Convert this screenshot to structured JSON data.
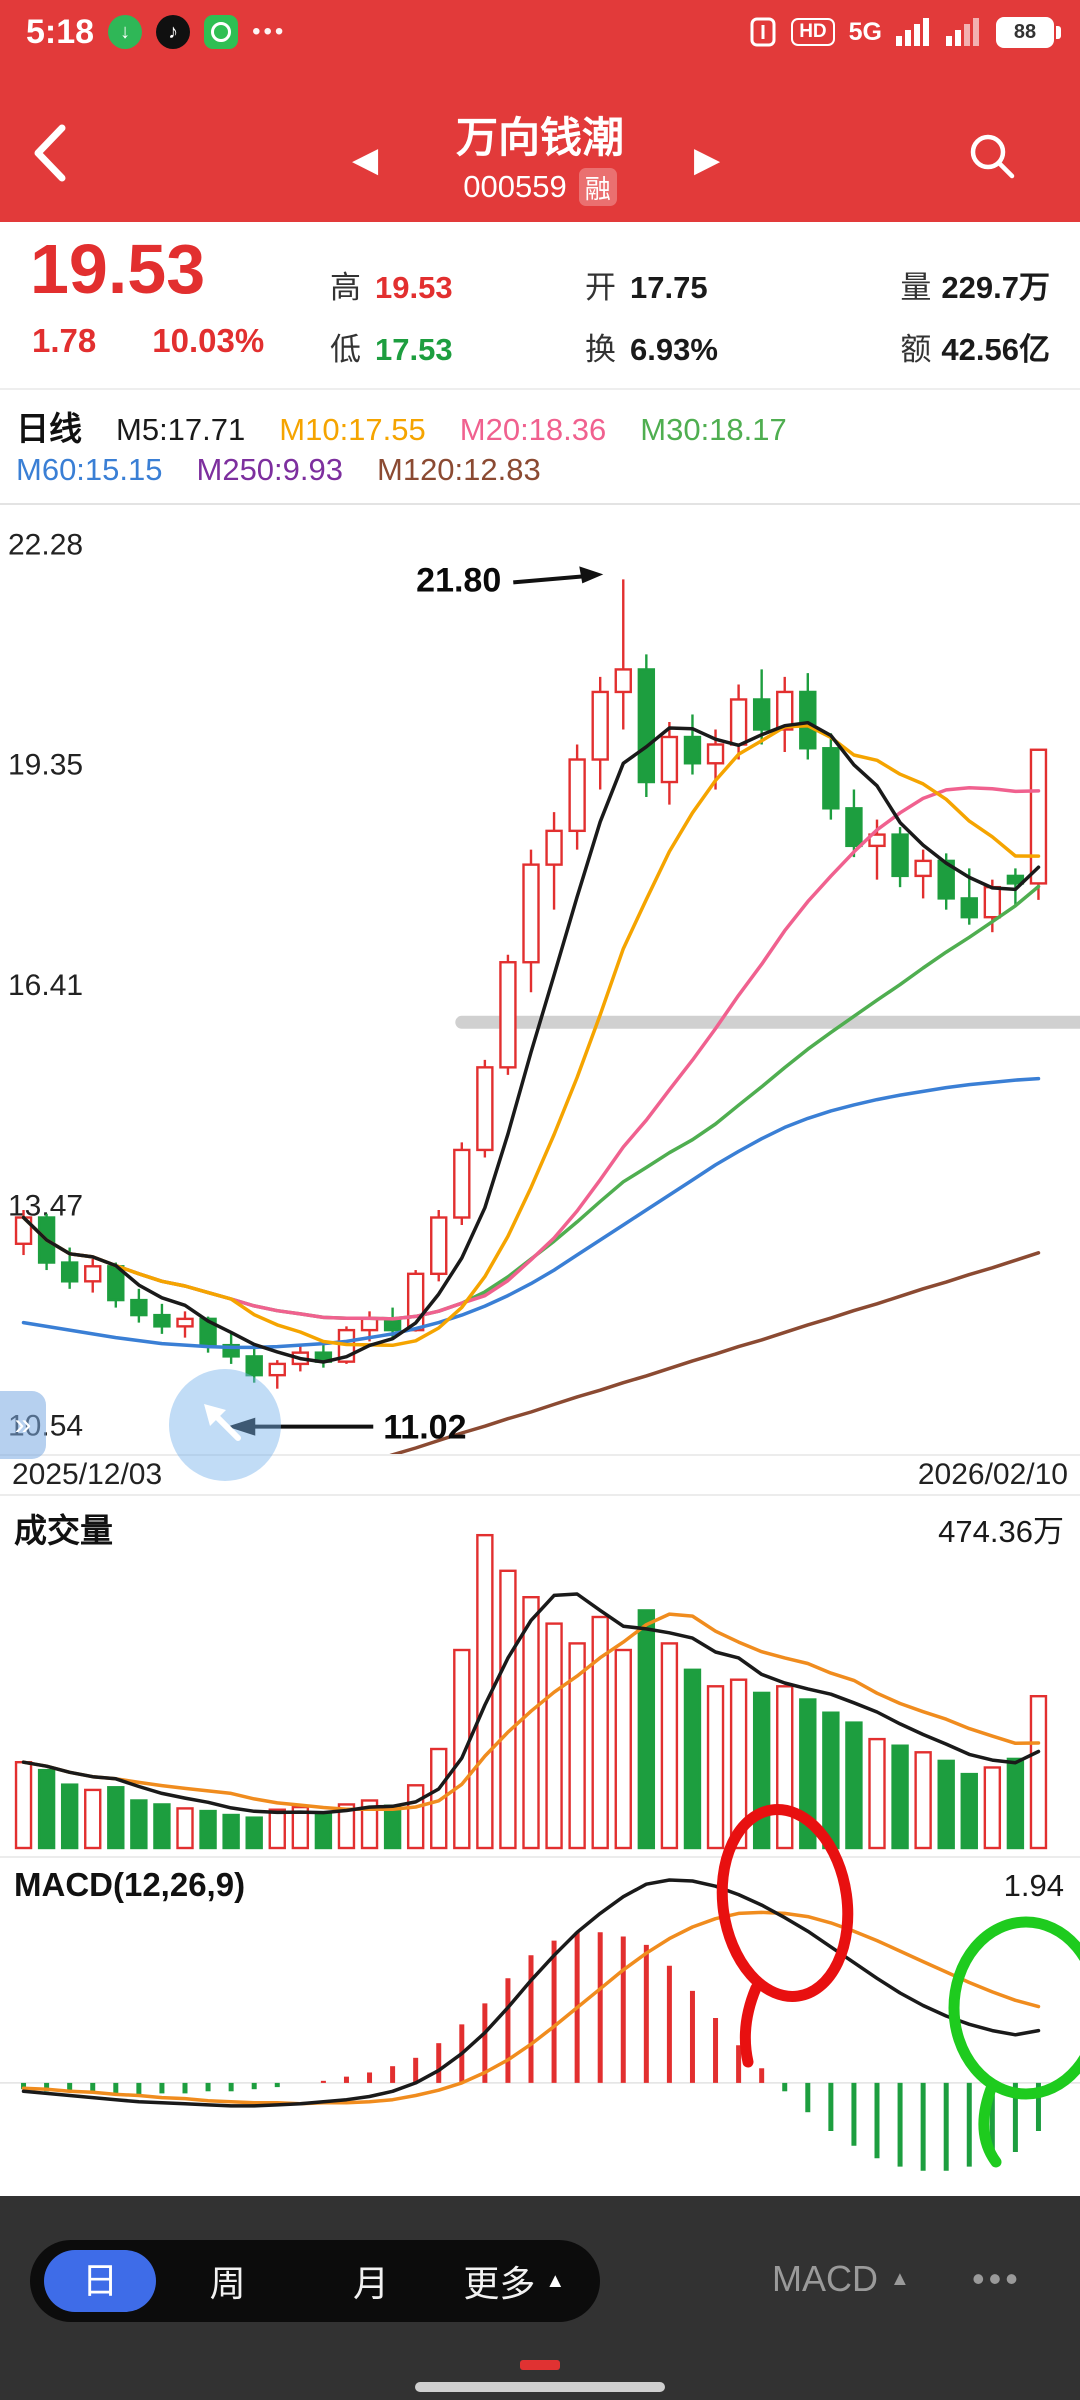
{
  "colors": {
    "header_red": "#e23a3a",
    "up_red": "#e22f2f",
    "down_green": "#1d9e3f",
    "flat_dark": "#1a1a1a",
    "ma5": "#1a1a1a",
    "ma10": "#f5a400",
    "ma20": "#f0618f",
    "ma30": "#4fae50",
    "ma60": "#3a7fd5",
    "ma120": "#8b4a32",
    "macd_dif": "#1a1a1a",
    "macd_dea": "#f08c1e",
    "annotation_red": "#e81010",
    "annotation_green": "#1ecb1e"
  },
  "status_bar": {
    "time": "5:18",
    "hd": "HD",
    "network": "5G",
    "battery": "88"
  },
  "header": {
    "title": "万向钱潮",
    "code": "000559",
    "margin_badge": "融"
  },
  "quote": {
    "price": "19.53",
    "change": "1.78",
    "change_pct": "10.03%",
    "high_label": "高",
    "high": "19.53",
    "low_label": "低",
    "low": "17.53",
    "open_label": "开",
    "open": "17.75",
    "turnover_label": "换",
    "turnover": "6.93%",
    "volume_label": "量",
    "volume": "229.7万",
    "amount_label": "额",
    "amount": "42.56亿"
  },
  "ma_bar": {
    "period": "日线",
    "row1": [
      {
        "label": "M5:17.71",
        "color": "#1a1a1a"
      },
      {
        "label": "M10:17.55",
        "color": "#f5a400"
      },
      {
        "label": "M20:18.36",
        "color": "#f0618f"
      },
      {
        "label": "M30:18.17",
        "color": "#4fae50"
      }
    ],
    "row2": [
      {
        "label": "M60:15.15",
        "color": "#3a7fd5"
      },
      {
        "label": "M250:9.93",
        "color": "#7d2f9e"
      },
      {
        "label": "M120:12.83",
        "color": "#8b4a32"
      }
    ]
  },
  "dates": {
    "start": "2025/12/03",
    "end": "2026/02/10"
  },
  "volume_pane": {
    "label": "成交量",
    "max_label": "474.36万"
  },
  "macd_pane": {
    "label": "MACD(12,26,9)",
    "value_label": "1.94"
  },
  "bottom_bar": {
    "tab_day": "日",
    "tab_week": "周",
    "tab_month": "月",
    "tab_more": "更多",
    "indicator": "MACD"
  },
  "chart_data": {
    "type": "candlestick+volume+macd",
    "kline": {
      "y_ticks": [
        "22.28",
        "19.35",
        "16.41",
        "13.47",
        "10.54"
      ],
      "ylim": [
        10.15,
        22.79
      ],
      "high_point": {
        "day": 26,
        "price": 21.8,
        "label": "21.80"
      },
      "low_point": {
        "day": 11,
        "price": 11.02,
        "label": "11.02"
      },
      "level_line": {
        "price": 15.9,
        "start_day": 19
      },
      "candles": [
        [
          12.95,
          13.4,
          12.8,
          13.3
        ],
        [
          13.3,
          13.35,
          12.6,
          12.7
        ],
        [
          12.7,
          12.9,
          12.35,
          12.45
        ],
        [
          12.45,
          12.75,
          12.3,
          12.65
        ],
        [
          12.65,
          12.7,
          12.1,
          12.2
        ],
        [
          12.2,
          12.35,
          11.9,
          12.0
        ],
        [
          12.0,
          12.15,
          11.75,
          11.85
        ],
        [
          11.85,
          12.05,
          11.7,
          11.95
        ],
        [
          11.95,
          11.98,
          11.5,
          11.6
        ],
        [
          11.6,
          11.75,
          11.35,
          11.45
        ],
        [
          11.45,
          11.55,
          11.1,
          11.2
        ],
        [
          11.2,
          11.4,
          11.02,
          11.35
        ],
        [
          11.35,
          11.6,
          11.25,
          11.5
        ],
        [
          11.5,
          11.65,
          11.3,
          11.38
        ],
        [
          11.38,
          11.85,
          11.35,
          11.8
        ],
        [
          11.8,
          12.05,
          11.65,
          11.95
        ],
        [
          11.95,
          12.1,
          11.7,
          11.8
        ],
        [
          11.8,
          12.6,
          11.78,
          12.55
        ],
        [
          12.55,
          13.4,
          12.45,
          13.3
        ],
        [
          13.3,
          14.3,
          13.2,
          14.2
        ],
        [
          14.2,
          15.4,
          14.1,
          15.3
        ],
        [
          15.3,
          16.8,
          15.2,
          16.7
        ],
        [
          16.7,
          18.2,
          16.3,
          18.0
        ],
        [
          18.0,
          18.7,
          17.4,
          18.45
        ],
        [
          18.45,
          19.6,
          18.2,
          19.4
        ],
        [
          19.4,
          20.5,
          19.0,
          20.3
        ],
        [
          20.3,
          21.8,
          19.8,
          20.6
        ],
        [
          20.6,
          20.8,
          18.9,
          19.1
        ],
        [
          19.1,
          19.9,
          18.8,
          19.7
        ],
        [
          19.7,
          20.0,
          19.2,
          19.35
        ],
        [
          19.35,
          19.8,
          19.0,
          19.6
        ],
        [
          19.6,
          20.4,
          19.4,
          20.2
        ],
        [
          20.2,
          20.6,
          19.6,
          19.8
        ],
        [
          19.8,
          20.5,
          19.5,
          20.3
        ],
        [
          20.3,
          20.55,
          19.4,
          19.55
        ],
        [
          19.55,
          19.75,
          18.6,
          18.75
        ],
        [
          18.75,
          19.0,
          18.1,
          18.25
        ],
        [
          18.25,
          18.6,
          17.8,
          18.4
        ],
        [
          18.4,
          18.5,
          17.7,
          17.85
        ],
        [
          17.85,
          18.2,
          17.55,
          18.05
        ],
        [
          18.05,
          18.15,
          17.4,
          17.55
        ],
        [
          17.55,
          17.95,
          17.2,
          17.3
        ],
        [
          17.3,
          17.8,
          17.1,
          17.7
        ],
        [
          17.85,
          17.95,
          17.45,
          17.75
        ],
        [
          17.75,
          19.53,
          17.53,
          19.53
        ]
      ],
      "ma60": [
        11.9,
        11.85,
        11.8,
        11.75,
        11.7,
        11.66,
        11.62,
        11.6,
        11.58,
        11.57,
        11.57,
        11.58,
        11.6,
        11.62,
        11.65,
        11.7,
        11.75,
        11.82,
        11.9,
        12.0,
        12.12,
        12.26,
        12.42,
        12.6,
        12.8,
        13.0,
        13.2,
        13.4,
        13.6,
        13.8,
        14.0,
        14.18,
        14.35,
        14.5,
        14.62,
        14.72,
        14.8,
        14.87,
        14.93,
        14.98,
        15.03,
        15.07,
        15.1,
        15.13,
        15.15
      ],
      "ma120": [
        8.6,
        8.7,
        8.79,
        8.89,
        8.98,
        9.08,
        9.18,
        9.27,
        9.37,
        9.46,
        9.56,
        9.66,
        9.75,
        9.85,
        9.95,
        10.04,
        10.14,
        10.23,
        10.33,
        10.43,
        10.52,
        10.62,
        10.71,
        10.81,
        10.91,
        11.0,
        11.1,
        11.19,
        11.29,
        11.39,
        11.48,
        11.58,
        11.67,
        11.77,
        11.87,
        11.96,
        12.06,
        12.15,
        12.25,
        12.35,
        12.44,
        12.54,
        12.63,
        12.73,
        12.83
      ]
    },
    "volume": {
      "scale_max": 500,
      "values": [
        130,
        118,
        96,
        88,
        92,
        72,
        66,
        60,
        56,
        50,
        46,
        58,
        62,
        52,
        66,
        72,
        64,
        95,
        150,
        300,
        474,
        420,
        380,
        340,
        310,
        350,
        300,
        360,
        310,
        270,
        245,
        255,
        235,
        245,
        225,
        205,
        190,
        165,
        155,
        145,
        132,
        112,
        122,
        135,
        230
      ]
    },
    "macd": {
      "scale_max": 2.15,
      "scale_min": -1.1,
      "dif": [
        -0.08,
        -0.1,
        -0.12,
        -0.14,
        -0.16,
        -0.18,
        -0.19,
        -0.2,
        -0.21,
        -0.22,
        -0.22,
        -0.21,
        -0.2,
        -0.18,
        -0.16,
        -0.13,
        -0.08,
        0.0,
        0.12,
        0.28,
        0.48,
        0.72,
        0.98,
        1.22,
        1.44,
        1.62,
        1.78,
        1.9,
        1.94,
        1.93,
        1.88,
        1.8,
        1.7,
        1.58,
        1.45,
        1.3,
        1.15,
        1.0,
        0.86,
        0.74,
        0.64,
        0.56,
        0.5,
        0.46,
        0.5
      ],
      "dea": [
        -0.05,
        -0.06,
        -0.08,
        -0.09,
        -0.11,
        -0.12,
        -0.14,
        -0.15,
        -0.17,
        -0.18,
        -0.19,
        -0.19,
        -0.2,
        -0.19,
        -0.19,
        -0.18,
        -0.16,
        -0.12,
        -0.07,
        0.0,
        0.1,
        0.22,
        0.37,
        0.54,
        0.72,
        0.9,
        1.08,
        1.24,
        1.38,
        1.49,
        1.57,
        1.62,
        1.63,
        1.62,
        1.59,
        1.53,
        1.45,
        1.36,
        1.26,
        1.16,
        1.06,
        0.96,
        0.87,
        0.79,
        0.73
      ]
    }
  }
}
